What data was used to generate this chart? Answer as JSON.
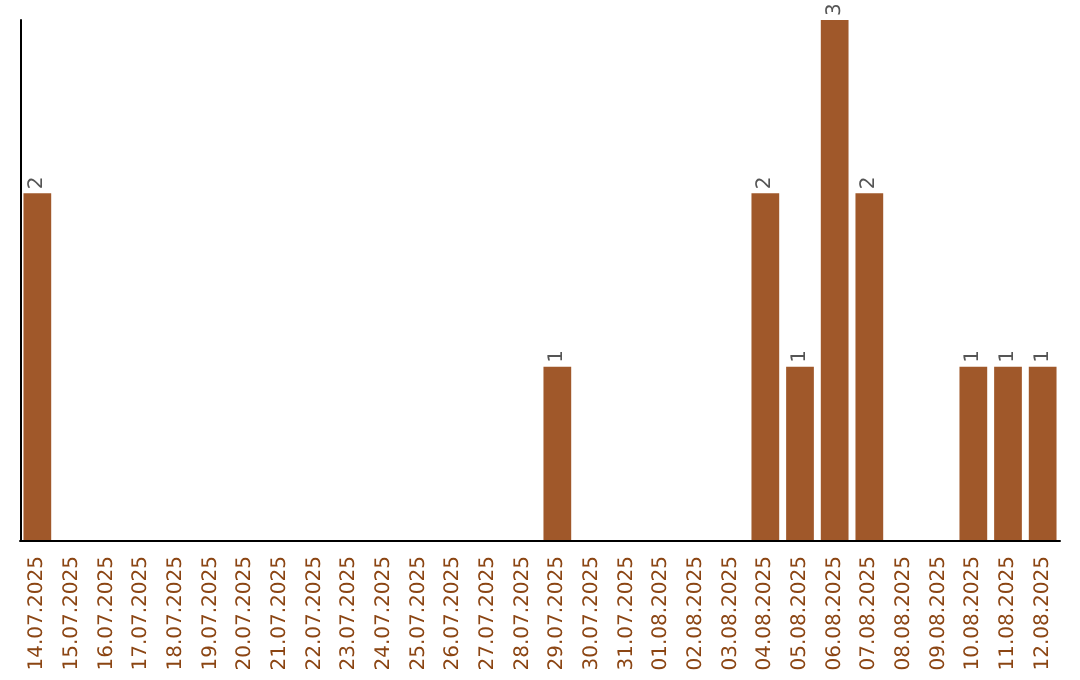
{
  "chart_data": {
    "type": "bar",
    "categories": [
      "14.07.2025",
      "15.07.2025",
      "16.07.2025",
      "17.07.2025",
      "18.07.2025",
      "19.07.2025",
      "20.07.2025",
      "21.07.2025",
      "22.07.2025",
      "23.07.2025",
      "24.07.2025",
      "25.07.2025",
      "26.07.2025",
      "27.07.2025",
      "28.07.2025",
      "29.07.2025",
      "30.07.2025",
      "31.07.2025",
      "01.08.2025",
      "02.08.2025",
      "03.08.2025",
      "04.08.2025",
      "05.08.2025",
      "06.08.2025",
      "07.08.2025",
      "08.08.2025",
      "09.08.2025",
      "10.08.2025",
      "11.08.2025",
      "12.08.2025"
    ],
    "values": [
      2,
      0,
      0,
      0,
      0,
      0,
      0,
      0,
      0,
      0,
      0,
      0,
      0,
      0,
      0,
      1,
      0,
      0,
      0,
      0,
      0,
      2,
      1,
      3,
      2,
      0,
      0,
      1,
      1,
      1
    ],
    "value_labels": [
      "2",
      null,
      null,
      null,
      null,
      null,
      null,
      null,
      null,
      null,
      null,
      null,
      null,
      null,
      null,
      "1",
      null,
      null,
      null,
      null,
      null,
      "2",
      "1",
      "3",
      "2",
      null,
      null,
      "1",
      "1",
      "1"
    ],
    "color": "#a0582a",
    "tick_labels": "x"
  }
}
